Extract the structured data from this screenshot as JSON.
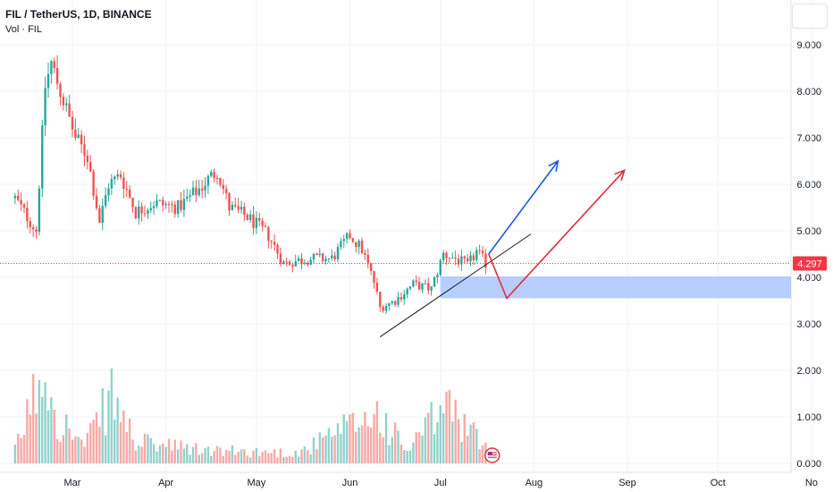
{
  "header": {
    "symbol": "FIL / TetherUS, 1D, BINANCE",
    "volume_label": "Vol · FIL"
  },
  "colors": {
    "up": "#26a69a",
    "down": "#ef5350",
    "price_line": "#f23645",
    "zone_fill": "#aac4fb",
    "blue_arrow": "#1e56e6",
    "red_arrow": "#e02d3c",
    "trendline": "#131722"
  },
  "chart_data": {
    "type": "candlestick",
    "title": "FIL / TetherUS, 1D, BINANCE",
    "y_ticks": [
      "9.000",
      "8.000",
      "7.000",
      "6.000",
      "5.000",
      "4.000",
      "3.000",
      "2.000",
      "1.000",
      "0.000"
    ],
    "y_tick_values": [
      9,
      8,
      7,
      6,
      5,
      4,
      3,
      2,
      1,
      0
    ],
    "x_ticks": [
      "Mar",
      "Apr",
      "May",
      "Jun",
      "Jul",
      "Aug",
      "Sep",
      "Oct",
      "No"
    ],
    "ylim": [
      0,
      9.5
    ],
    "current_price": 4.297,
    "current_price_label": "4.297",
    "price_anchors": [
      {
        "date": "2023-02-10",
        "close": 5.7
      },
      {
        "date": "2023-02-17",
        "close": 5.0
      },
      {
        "date": "2023-02-20",
        "close": 8.1
      },
      {
        "date": "2023-02-22",
        "close": 8.6
      },
      {
        "date": "2023-02-26",
        "close": 7.8
      },
      {
        "date": "2023-03-02",
        "close": 7.0
      },
      {
        "date": "2023-03-06",
        "close": 6.6
      },
      {
        "date": "2023-03-10",
        "close": 5.2
      },
      {
        "date": "2023-03-13",
        "close": 6.0
      },
      {
        "date": "2023-03-17",
        "close": 6.2
      },
      {
        "date": "2023-03-22",
        "close": 5.4
      },
      {
        "date": "2023-03-28",
        "close": 5.6
      },
      {
        "date": "2023-04-05",
        "close": 5.5
      },
      {
        "date": "2023-04-12",
        "close": 5.9
      },
      {
        "date": "2023-04-18",
        "close": 6.3
      },
      {
        "date": "2023-04-22",
        "close": 5.5
      },
      {
        "date": "2023-04-28",
        "close": 5.3
      },
      {
        "date": "2023-05-05",
        "close": 4.9
      },
      {
        "date": "2023-05-10",
        "close": 4.3
      },
      {
        "date": "2023-05-18",
        "close": 4.4
      },
      {
        "date": "2023-05-26",
        "close": 4.4
      },
      {
        "date": "2023-06-01",
        "close": 4.9
      },
      {
        "date": "2023-06-05",
        "close": 4.6
      },
      {
        "date": "2023-06-09",
        "close": 3.9
      },
      {
        "date": "2023-06-11",
        "close": 3.35
      },
      {
        "date": "2023-06-16",
        "close": 3.5
      },
      {
        "date": "2023-06-22",
        "close": 3.85
      },
      {
        "date": "2023-06-28",
        "close": 3.75
      },
      {
        "date": "2023-07-02",
        "close": 4.5
      },
      {
        "date": "2023-07-06",
        "close": 4.4
      },
      {
        "date": "2023-07-10",
        "close": 4.25
      },
      {
        "date": "2023-07-13",
        "close": 4.55
      },
      {
        "date": "2023-07-16",
        "close": 4.3
      }
    ],
    "volume_anchors": [
      {
        "date": "2023-02-10",
        "volume": 0.3
      },
      {
        "date": "2023-02-20",
        "volume": 2.4
      },
      {
        "date": "2023-02-24",
        "volume": 1.1
      },
      {
        "date": "2023-03-05",
        "volume": 0.4
      },
      {
        "date": "2023-03-14",
        "volume": 1.6
      },
      {
        "date": "2023-03-22",
        "volume": 0.5
      },
      {
        "date": "2023-04-15",
        "volume": 0.3
      },
      {
        "date": "2023-05-15",
        "volume": 0.25
      },
      {
        "date": "2023-06-10",
        "volume": 1.2
      },
      {
        "date": "2023-06-20",
        "volume": 0.3
      },
      {
        "date": "2023-07-03",
        "volume": 1.4
      },
      {
        "date": "2023-07-16",
        "volume": 0.35
      }
    ],
    "annotations": {
      "support_zone": {
        "from": "2023-07-01",
        "to": "2023-11-08",
        "low": 3.55,
        "high": 4.02
      },
      "trendline": {
        "from": [
          "2023-06-11",
          2.72
        ],
        "to": [
          "2023-07-31",
          4.93
        ]
      },
      "blue_arrow": [
        [
          "2023-07-17",
          4.5
        ],
        [
          "2023-08-09",
          6.5
        ]
      ],
      "red_arrow": [
        [
          "2023-07-17",
          4.5
        ],
        [
          "2023-07-23",
          3.55
        ],
        [
          "2023-08-31",
          6.3
        ]
      ]
    }
  }
}
